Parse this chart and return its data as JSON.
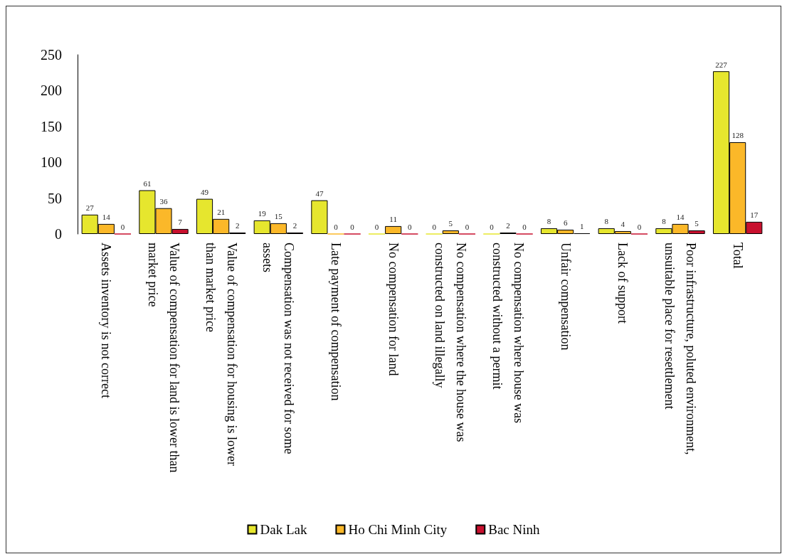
{
  "chart_data": {
    "type": "bar",
    "categories": [
      "Assets inventory is not correct",
      "Value of compensation for land is lower than market price",
      "Value of compensation for housing is lower than market price",
      "Compensation was not received for some assets",
      "Late payment of compensation",
      "No compensation for land",
      "No compensation where the house was constructed on land illegally",
      "No compensation where house was constructed without a permit",
      "Unfair compensation",
      "Lack of support",
      "Poor infrastructure, poluted environment, unsuitable place for resettlement",
      "Total"
    ],
    "series": [
      {
        "name": "Dak Lak",
        "color": "#e6e62e",
        "values": [
          27,
          61,
          49,
          19,
          47,
          0,
          0,
          0,
          8,
          8,
          8,
          227
        ]
      },
      {
        "name": "Ho Chi Minh City",
        "color": "#fbb829",
        "values": [
          14,
          36,
          21,
          15,
          0,
          11,
          5,
          2,
          6,
          4,
          14,
          128
        ]
      },
      {
        "name": "Bac Ninh",
        "color": "#c8102e",
        "values": [
          0,
          7,
          2,
          2,
          0,
          0,
          0,
          0,
          1,
          0,
          5,
          17
        ]
      }
    ],
    "ylim": [
      0,
      250
    ],
    "yticks": [
      0,
      50,
      100,
      150,
      200,
      250
    ],
    "grid": false,
    "legend": "bottom",
    "data_labels": true
  }
}
